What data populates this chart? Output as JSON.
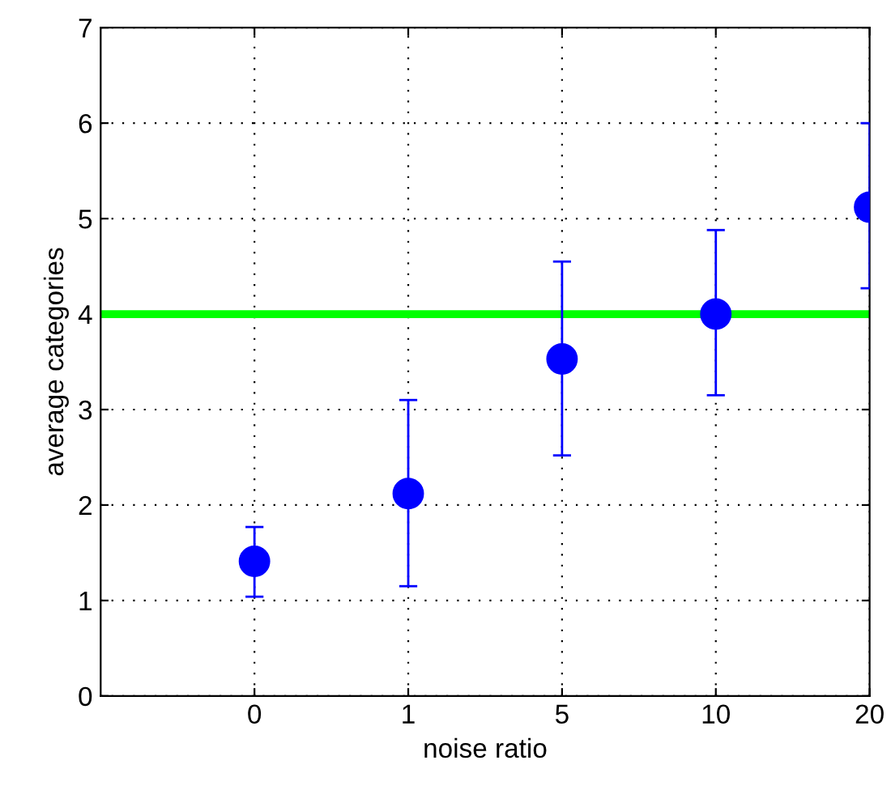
{
  "chart_data": {
    "type": "scatter",
    "xlabel": "noise ratio",
    "ylabel": "average categories",
    "categories": [
      null,
      "0",
      "1",
      "5",
      "10",
      "20"
    ],
    "series": [
      {
        "color": "#0000ff",
        "values": [
          null,
          1.41,
          2.12,
          3.53,
          4.0,
          5.12
        ],
        "errors": [
          null,
          [
            1.04,
            1.77
          ],
          [
            1.15,
            3.1
          ],
          [
            2.52,
            4.55
          ],
          [
            3.15,
            4.88
          ],
          [
            4.27,
            6.0
          ]
        ]
      }
    ],
    "ylim": [
      0,
      7
    ],
    "yticks": [
      0,
      1,
      2,
      3,
      4,
      5,
      6,
      7
    ],
    "grid": true,
    "marker": "circle",
    "ref_lines": [
      {
        "axis": "y",
        "value": 4,
        "color": "#00ff00",
        "line_style": "solid"
      }
    ]
  }
}
